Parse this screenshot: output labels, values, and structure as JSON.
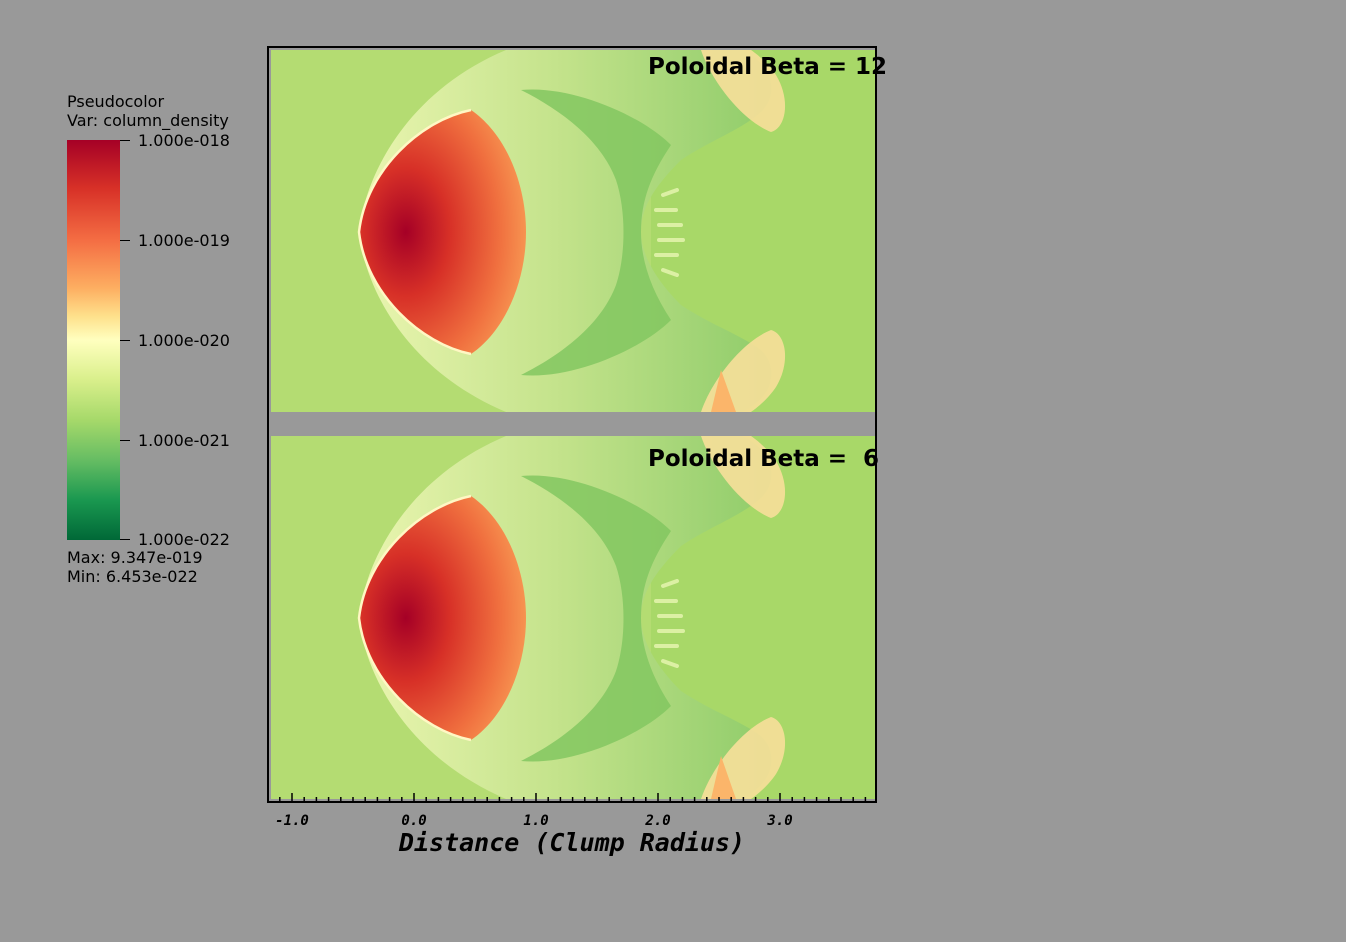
{
  "legend": {
    "title": "Pseudocolor",
    "var_label": "Var: column_density",
    "ticks": [
      "1.000e-018",
      "1.000e-019",
      "1.000e-020",
      "1.000e-021",
      "1.000e-022"
    ],
    "max_label": "Max:  9.347e-019",
    "min_label": "Min:  6.453e-022",
    "colormap": [
      "#a50026",
      "#d73027",
      "#f46d43",
      "#fdae61",
      "#fee08b",
      "#ffffbf",
      "#d9ef8b",
      "#a6d96a",
      "#66bd63",
      "#1a9850",
      "#006837"
    ]
  },
  "panels": [
    {
      "title": "Poloidal Beta = 12"
    },
    {
      "title": "Poloidal Beta =  6"
    }
  ],
  "x_axis": {
    "title": "Distance (Clump Radius)",
    "tick_labels": [
      "-1.0",
      "0.0",
      "1.0",
      "2.0",
      "3.0"
    ],
    "major_ticks": [
      -1,
      0,
      1,
      2,
      3
    ],
    "range": [
      -1.1,
      3.9
    ]
  },
  "colors": {
    "background": "#999999",
    "ambient": "#b4dc72",
    "core": "#c0141f"
  }
}
